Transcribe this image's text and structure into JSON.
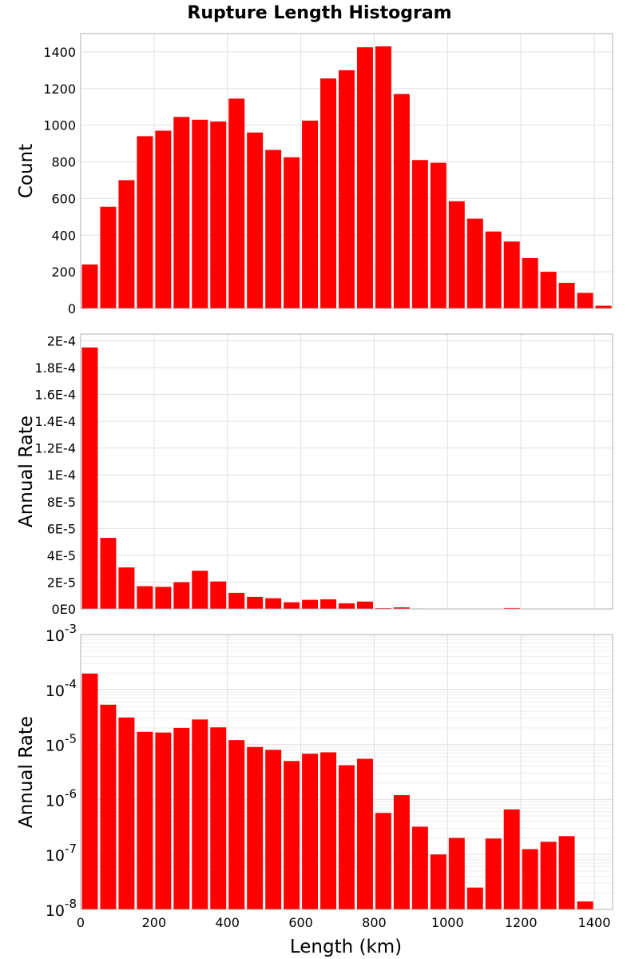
{
  "chart_data": {
    "type": "bar",
    "title": "Rupture Length Histogram",
    "xlabel": "Length (km)",
    "xlim": [
      0,
      1450
    ],
    "bin_width": 50,
    "bin_centers": [
      25,
      75,
      125,
      175,
      225,
      275,
      325,
      375,
      425,
      475,
      525,
      575,
      625,
      675,
      725,
      775,
      825,
      875,
      925,
      975,
      1025,
      1075,
      1125,
      1175,
      1225,
      1275,
      1325,
      1375,
      1425
    ],
    "x_ticks": [
      "0",
      "200",
      "400",
      "600",
      "800",
      "1000",
      "1200",
      "1400"
    ],
    "panels": [
      {
        "ylabel": "Count",
        "scale": "linear",
        "ylim": [
          0,
          1500
        ],
        "y_ticks": [
          {
            "value": 0,
            "label": "0"
          },
          {
            "value": 200,
            "label": "200"
          },
          {
            "value": 400,
            "label": "400"
          },
          {
            "value": 600,
            "label": "600"
          },
          {
            "value": 800,
            "label": "800"
          },
          {
            "value": 1000,
            "label": "1000"
          },
          {
            "value": 1200,
            "label": "1200"
          },
          {
            "value": 1400,
            "label": "1400"
          }
        ],
        "values": [
          240,
          555,
          700,
          940,
          970,
          1045,
          1030,
          1020,
          1145,
          960,
          865,
          825,
          1025,
          1255,
          1300,
          1425,
          1430,
          1170,
          810,
          795,
          585,
          490,
          420,
          365,
          275,
          200,
          140,
          85,
          15
        ]
      },
      {
        "ylabel": "Annual Rate",
        "scale": "linear",
        "ylim": [
          0,
          0.000205
        ],
        "y_ticks": [
          {
            "value": 0,
            "label": "0E0"
          },
          {
            "value": 2e-05,
            "label": "2E-5"
          },
          {
            "value": 4e-05,
            "label": "4E-5"
          },
          {
            "value": 6e-05,
            "label": "6E-5"
          },
          {
            "value": 8e-05,
            "label": "8E-5"
          },
          {
            "value": 0.0001,
            "label": "1E-4"
          },
          {
            "value": 0.00012,
            "label": "1.2E-4"
          },
          {
            "value": 0.00014,
            "label": "1.4E-4"
          },
          {
            "value": 0.00016,
            "label": "1.6E-4"
          },
          {
            "value": 0.00018,
            "label": "1.8E-4"
          },
          {
            "value": 0.0002,
            "label": "2E-4"
          }
        ],
        "values": [
          0.000195,
          5.3e-05,
          3.1e-05,
          1.7e-05,
          1.65e-05,
          2e-05,
          2.85e-05,
          2.05e-05,
          1.2e-05,
          9e-06,
          8e-06,
          5e-06,
          6.8e-06,
          7.2e-06,
          4.2e-06,
          5.5e-06,
          5.7e-07,
          1.2e-06,
          3.2e-07,
          1e-07,
          2e-07,
          2.5e-08,
          1.95e-07,
          6.6e-07,
          1.25e-07,
          1.7e-07,
          2.15e-07,
          1.4e-08,
          0
        ]
      },
      {
        "ylabel": "Annual Rate",
        "scale": "log",
        "ylim": [
          1e-08,
          0.001
        ],
        "y_ticks": [
          {
            "value": 1e-08,
            "base": "10",
            "exp": "-8"
          },
          {
            "value": 1e-07,
            "base": "10",
            "exp": "-7"
          },
          {
            "value": 1e-06,
            "base": "10",
            "exp": "-6"
          },
          {
            "value": 1e-05,
            "base": "10",
            "exp": "-5"
          },
          {
            "value": 0.0001,
            "base": "10",
            "exp": "-4"
          },
          {
            "value": 0.001,
            "base": "10",
            "exp": "-3"
          }
        ],
        "values": [
          0.000195,
          5.3e-05,
          3.1e-05,
          1.7e-05,
          1.65e-05,
          2e-05,
          2.85e-05,
          2.05e-05,
          1.2e-05,
          9e-06,
          8e-06,
          5e-06,
          6.8e-06,
          7.2e-06,
          4.2e-06,
          5.5e-06,
          5.7e-07,
          1.2e-06,
          3.2e-07,
          1e-07,
          2e-07,
          2.5e-08,
          1.95e-07,
          6.6e-07,
          1.25e-07,
          1.7e-07,
          2.15e-07,
          1.4e-08,
          0
        ]
      }
    ],
    "bar_color": "#ff0000",
    "grid": true
  }
}
